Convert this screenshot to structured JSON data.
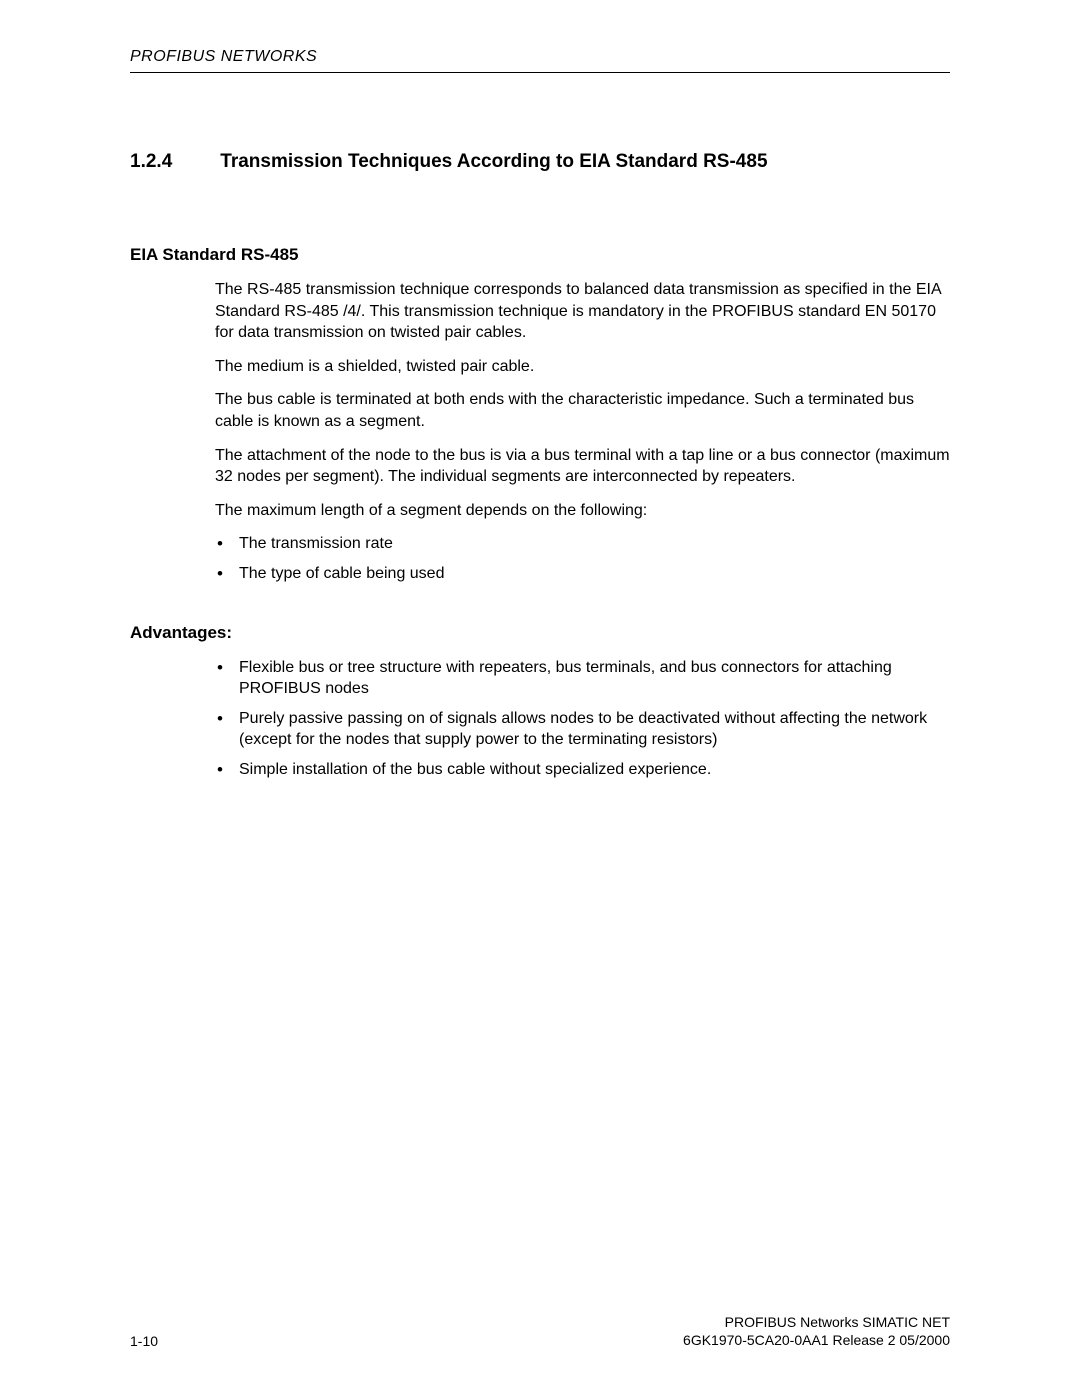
{
  "header": {
    "title": "PROFIBUS NETWORKS"
  },
  "section": {
    "number": "1.2.4",
    "title": "Transmission Techniques According to EIA Standard RS-485"
  },
  "sub1": {
    "heading": "EIA Standard RS-485",
    "p1": "The RS-485 transmission technique corresponds to balanced data transmission as specified in the EIA Standard RS-485 /4/.  This transmission technique is mandatory in the PROFIBUS standard EN 50170 for data transmission on twisted pair cables.",
    "p2": "The medium is a shielded, twisted pair cable.",
    "p3": "The bus cable is terminated at both ends with the characteristic impedance. Such a terminated bus cable is known as a segment.",
    "p4": "The attachment of the node to the bus is via a bus terminal with a tap line or a bus connector (maximum 32 nodes per segment).  The individual segments are interconnected by repeaters.",
    "p5": "The maximum length of a segment depends on the following:",
    "bullets": {
      "b1": "The transmission rate",
      "b2": "The type of cable being used"
    }
  },
  "sub2": {
    "heading": "Advantages:",
    "bullets": {
      "b1": "Flexible bus or tree structure with repeaters, bus terminals, and bus connectors for attaching PROFIBUS nodes",
      "b2": "Purely passive passing on of signals allows nodes to be deactivated without affecting the network (except for the nodes that supply power to the terminating resistors)",
      "b3": "Simple installation of the bus cable without specialized experience."
    }
  },
  "footer": {
    "page_number": "1-10",
    "line1": "PROFIBUS Networks SIMATIC NET",
    "line2": "6GK1970-5CA20-0AA1 Release 2 05/2000"
  }
}
